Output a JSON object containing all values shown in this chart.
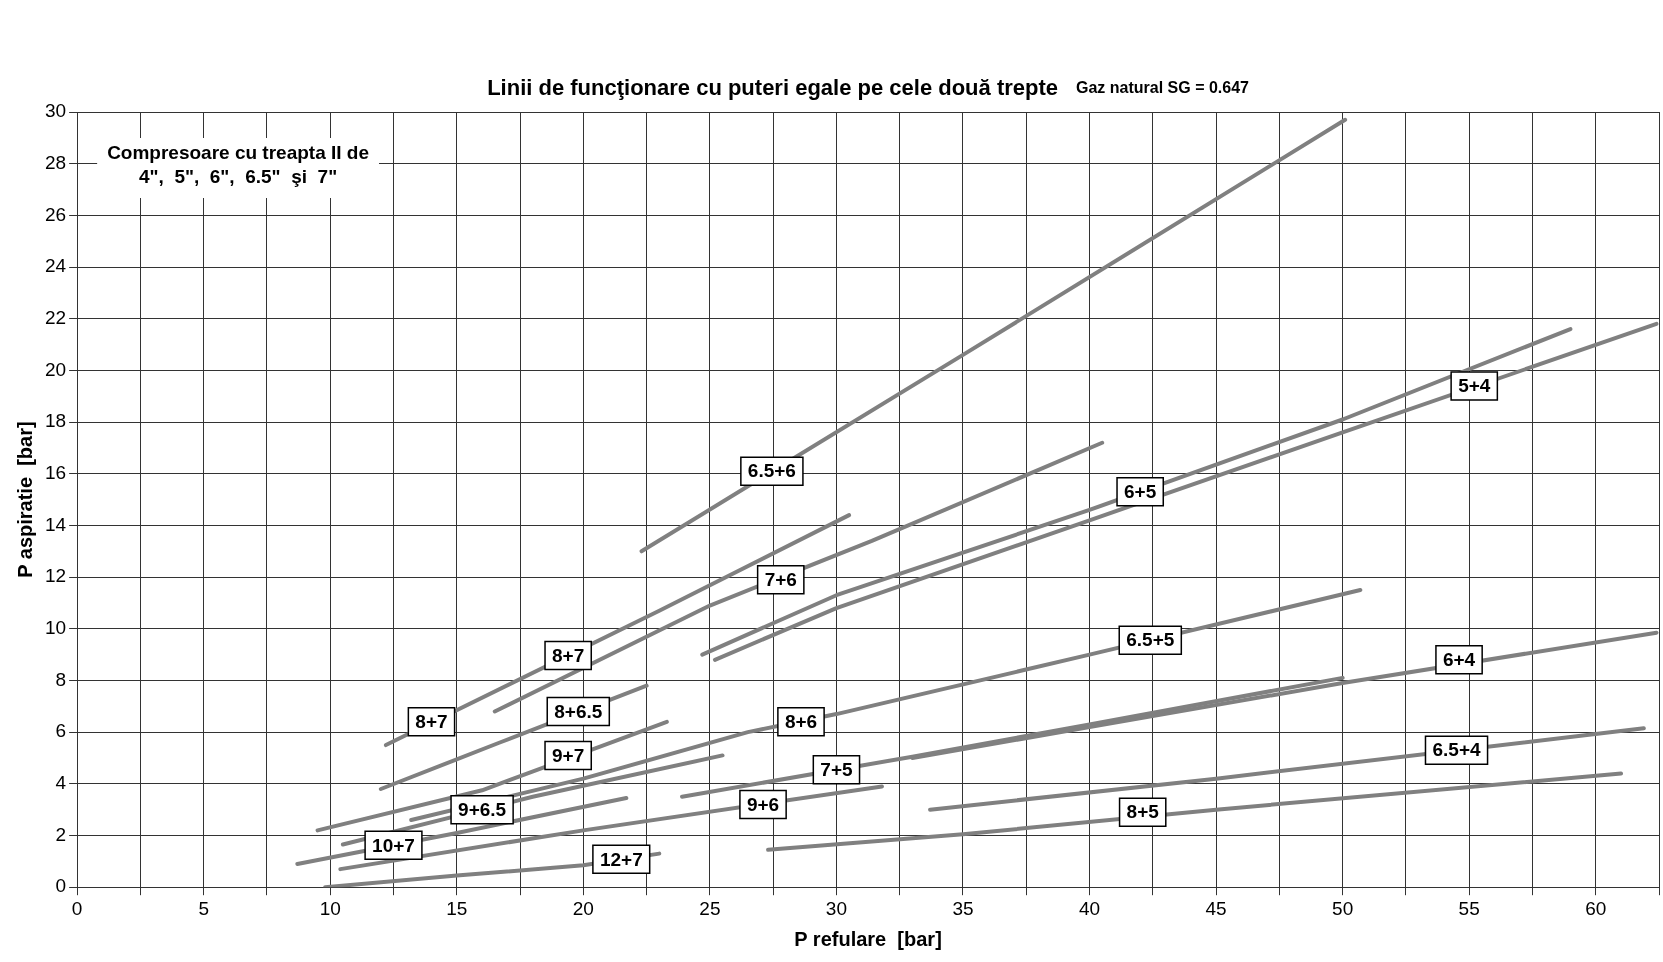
{
  "chart_data": {
    "type": "line",
    "title": "Linii de funcţionare cu puteri egale pe cele două trepte",
    "subtitle": "Gaz natural SG = 0.647",
    "xlabel": "P refulare  [bar]",
    "ylabel": "P aspiratie  [bar]",
    "xlim": [
      0,
      62.5
    ],
    "xticks": [
      0,
      {
        "value": 2.5,
        "label": null
      },
      5,
      {
        "value": 7.5,
        "label": null
      },
      10,
      {
        "value": 12.5,
        "label": null
      },
      15,
      {
        "value": 17.5,
        "label": null
      },
      20,
      {
        "value": 22.5,
        "label": null
      },
      25,
      {
        "value": 27.5,
        "label": null
      },
      30,
      {
        "value": 32.5,
        "label": null
      },
      35,
      {
        "value": 37.5,
        "label": null
      },
      40,
      {
        "value": 42.5,
        "label": null
      },
      45,
      {
        "value": 47.5,
        "label": null
      },
      50,
      {
        "value": 52.5,
        "label": null
      },
      55,
      {
        "value": 57.5,
        "label": null
      },
      60,
      {
        "value": 62.5,
        "label": null
      }
    ],
    "ylim": [
      0,
      30
    ],
    "yticks": [
      0,
      2,
      4,
      6,
      8,
      10,
      12,
      14,
      16,
      18,
      20,
      22,
      24,
      26,
      28,
      30
    ],
    "grid": true,
    "legend": false,
    "marker": "none",
    "line_style": "solid",
    "series": [
      {
        "color": "#808080",
        "x": [
          22.3,
          35,
          50.1
        ],
        "values": [
          13.0,
          20.6,
          29.7
        ]
      },
      {
        "color": "#808080",
        "x": [
          12.2,
          23,
          30.5
        ],
        "values": [
          5.5,
          10.7,
          14.4
        ]
      },
      {
        "color": "#808080",
        "x": [
          16.5,
          25,
          31.4,
          40.5
        ],
        "values": [
          6.8,
          10.9,
          13.4,
          17.2
        ]
      },
      {
        "color": "#808080",
        "x": [
          24.7,
          30,
          40,
          50,
          59
        ],
        "values": [
          9.0,
          11.3,
          14.6,
          18.1,
          21.6
        ]
      },
      {
        "color": "#808080",
        "x": [
          25.2,
          30,
          40,
          50,
          62.4
        ],
        "values": [
          8.8,
          10.8,
          14.2,
          17.6,
          21.8
        ]
      },
      {
        "color": "#808080",
        "x": [
          12.0,
          16.7,
          22.5
        ],
        "values": [
          3.8,
          5.6,
          7.8
        ]
      },
      {
        "color": "#808080",
        "x": [
          9.5,
          16,
          23.3
        ],
        "values": [
          2.2,
          3.75,
          6.4
        ]
      },
      {
        "color": "#808080",
        "x": [
          10.5,
          18,
          25.5
        ],
        "values": [
          1.65,
          3.5,
          5.1
        ]
      },
      {
        "color": "#808080",
        "x": [
          13.2,
          20,
          26.5,
          30,
          40,
          50.7
        ],
        "values": [
          2.6,
          4.2,
          6.0,
          6.7,
          9.0,
          11.5
        ]
      },
      {
        "color": "#808080",
        "x": [
          23.9,
          33,
          40,
          50
        ],
        "values": [
          3.5,
          5.05,
          6.3,
          8.1
        ]
      },
      {
        "color": "#808080",
        "x": [
          33,
          40,
          50,
          62.4
        ],
        "values": [
          5.0,
          6.2,
          7.9,
          9.85
        ]
      },
      {
        "color": "#808080",
        "x": [
          10.4,
          20,
          31.8
        ],
        "values": [
          0.7,
          2.2,
          3.9
        ]
      },
      {
        "color": "#808080",
        "x": [
          8.7,
          15,
          21.7
        ],
        "values": [
          0.9,
          2.1,
          3.45
        ]
      },
      {
        "color": "#808080",
        "x": [
          9.8,
          15,
          20,
          23
        ],
        "values": [
          0,
          0.45,
          0.85,
          1.3
        ]
      },
      {
        "color": "#808080",
        "x": [
          33.7,
          45,
          61.9
        ],
        "values": [
          3.0,
          4.2,
          6.15
        ]
      },
      {
        "color": "#808080",
        "x": [
          27.3,
          35,
          45,
          61
        ],
        "values": [
          1.45,
          2.05,
          3.0,
          4.4
        ]
      }
    ],
    "annotations": [
      "Compresoare cu treapta II de\n4\",  5\",  6\",  6.5\"  şi  7\"",
      {
        "text": "6.5+6",
        "x": 27.45,
        "y": 16.1
      },
      {
        "text": "6+5",
        "x": 42.0,
        "y": 15.3
      },
      {
        "text": "5+4",
        "x": 55.2,
        "y": 19.4
      },
      {
        "text": "7+6",
        "x": 27.8,
        "y": 11.9
      },
      {
        "text": "8+7",
        "x": 19.4,
        "y": 8.97
      },
      {
        "text": "8+7",
        "x": 14.0,
        "y": 6.4
      },
      {
        "text": "8+6.5",
        "x": 19.8,
        "y": 6.8
      },
      {
        "text": "8+6",
        "x": 28.6,
        "y": 6.4
      },
      {
        "text": "9+6.5",
        "x": 16.0,
        "y": 3.0
      },
      {
        "text": "9+7",
        "x": 19.4,
        "y": 5.1
      },
      {
        "text": "7+5",
        "x": 30.0,
        "y": 4.55
      },
      {
        "text": "6.5+5",
        "x": 42.4,
        "y": 9.56
      },
      {
        "text": "6+4",
        "x": 54.6,
        "y": 8.8
      },
      {
        "text": "6.5+4",
        "x": 54.5,
        "y": 5.3
      },
      {
        "text": "9+6",
        "x": 27.1,
        "y": 3.2
      },
      {
        "text": "8+5",
        "x": 42.1,
        "y": 2.9
      },
      {
        "text": "10+7",
        "x": 12.5,
        "y": 1.62
      },
      {
        "text": "12+7",
        "x": 21.5,
        "y": 1.08
      }
    ]
  }
}
